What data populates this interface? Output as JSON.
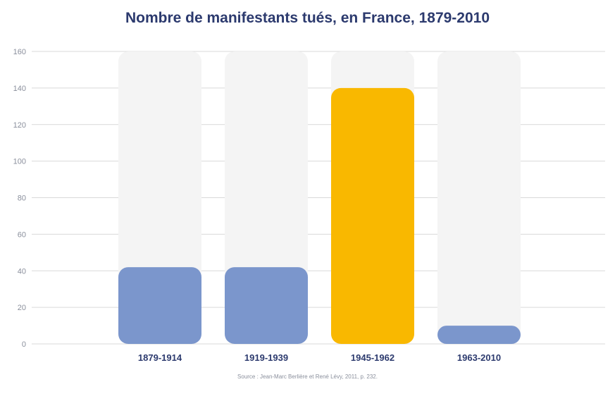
{
  "title": "Nombre de manifestants tués, en France, 1879-2010",
  "source": "Source : Jean-Marc Berlière et René Lévy, 2011, p. 232.",
  "chart_data": {
    "type": "bar",
    "title": "Nombre de manifestants tués, en France, 1879-2010",
    "categories": [
      "1879-1914",
      "1919-1939",
      "1945-1962",
      "1963-2010"
    ],
    "values": [
      42,
      42,
      140,
      10
    ],
    "ylim": [
      0,
      160
    ],
    "yticks": [
      0,
      20,
      40,
      60,
      80,
      100,
      120,
      140,
      160
    ],
    "grid": true,
    "colors": {
      "bar": "#7b96cc",
      "highlight": "#f9b800",
      "track": "#f4f4f4",
      "grid": "#d9d9d9",
      "category_label": "#2c3a6e",
      "tick_label": "#8a8f9c"
    },
    "highlight_index": 2
  }
}
